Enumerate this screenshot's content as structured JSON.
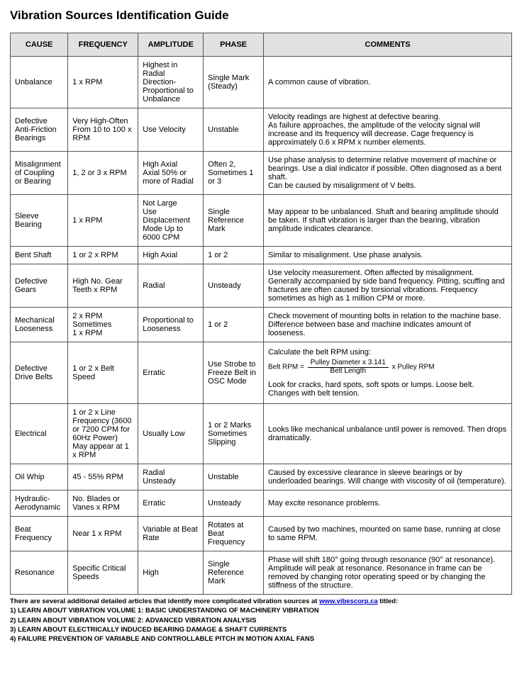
{
  "page_title": "Vibration Sources Identification Guide",
  "headers": {
    "cause": "CAUSE",
    "frequency": "FREQUENCY",
    "amplitude": "AMPLITUDE",
    "phase": "PHASE",
    "comments": "COMMENTS"
  },
  "rows": [
    {
      "cause": "Unbalance",
      "frequency": "1 x RPM",
      "amplitude": "Highest in Radial Direction- Proportional to Unbalance",
      "phase": "Single Mark (Steady)",
      "comments": "A common cause of vibration."
    },
    {
      "cause": "Defective Anti-Friction Bearings",
      "frequency": "Very High-Often From 10 to 100 x RPM",
      "amplitude": "Use Velocity",
      "phase": "Unstable",
      "comments": "Velocity readings are highest at defective bearing.\nAs failure approaches, the amplitude of the velocity signal will increase and its frequency will decrease. Cage frequency is approximately 0.6 x RPM x number elements."
    },
    {
      "cause": "Misalignment of Coupling or Bearing",
      "frequency": "1, 2 or 3 x RPM",
      "amplitude": "High Axial\nAxial 50% or more of Radial",
      "phase": "Often 2, Sometimes 1 or 3",
      "comments": "Use phase analysis to determine relative movement of machine or bearings. Use a dial indicator if possible. Often diagnosed as a bent shaft.\nCan be caused by misalignment of V belts."
    },
    {
      "cause": "Sleeve Bearing",
      "frequency": "1 x RPM",
      "amplitude": "Not Large\nUse Displacement Mode Up to 6000 CPM",
      "phase": "Single Reference Mark",
      "comments": "May appear to be unbalanced. Shaft and bearing amplitude should be taken. If shaft vibration is larger than the bearing, vibration amplitude indicates clearance."
    },
    {
      "cause": "Bent Shaft",
      "frequency": "1 or 2 x RPM",
      "amplitude": "High Axial",
      "phase": "1 or 2",
      "comments": "Similar to misalignment. Use phase analysis."
    },
    {
      "cause": "Defective Gears",
      "frequency": "High No. Gear Teeth x RPM",
      "amplitude": "Radial",
      "phase": "Unsteady",
      "comments": "Use velocity measurement. Often affected by misalignment. Generally accompanied by side band frequency. Pitting, scuffing and fractures are often caused by torsional vibrations. Frequency sometimes as high as 1 million CPM or more."
    },
    {
      "cause": "Mechanical Looseness",
      "frequency": "2 x RPM Sometimes\n1 x RPM",
      "amplitude": "Proportional to Looseness",
      "phase": "1 or 2",
      "comments": "Check movement of mounting bolts in relation to the machine base. Difference between base and machine indicates amount of looseness."
    },
    {
      "cause": "Defective Drive Belts",
      "frequency": "1 or 2 x Belt Speed",
      "amplitude": "Erratic",
      "phase": "Use Strobe to Freeze Belt in OSC Mode",
      "comments_special": "belt_formula",
      "comments_pre": "Calculate the belt RPM using:",
      "comments_formula_lhs": "Belt RPM = ",
      "comments_formula_num": "Pulley Diameter x 3.141",
      "comments_formula_den": "Belt Length",
      "comments_formula_rhs": " x Pulley RPM",
      "comments_post": "Look for cracks, hard spots, soft spots or lumps. Loose belt. Changes with belt tension."
    },
    {
      "cause": "Electrical",
      "frequency": "1 or 2 x Line Frequency (3600 or 7200 CPM for 60Hz Power) May appear at 1 x RPM",
      "amplitude": "Usually Low",
      "phase": "1 or 2 Marks Sometimes Slipping",
      "comments": "Looks like mechanical unbalance until power is removed. Then drops dramatically."
    },
    {
      "cause": "Oil Whip",
      "frequency": "45 - 55% RPM",
      "amplitude": "Radial Unsteady",
      "phase": "Unstable",
      "comments": "Caused by excessive clearance in sleeve bearings or by underloaded bearings. Will change with viscosity of oil (temperature)."
    },
    {
      "cause": "Hydraulic-Aerodynamic",
      "frequency": "No. Blades or Vanes x RPM",
      "amplitude": "Erratic",
      "phase": "Unsteady",
      "comments": "May excite resonance problems."
    },
    {
      "cause": "Beat Frequency",
      "frequency": "Near 1 x RPM",
      "amplitude": "Variable at Beat Rate",
      "phase": "Rotates at Beat Frequency",
      "comments": "Caused by two machines, mounted on same base, running at close to same RPM."
    },
    {
      "cause": "Resonance",
      "frequency": "Specific Critical Speeds",
      "amplitude": "High",
      "phase": "Single Reference Mark",
      "comments": "Phase will shift 180° going through resonance (90° at resonance). Amplitude will peak at resonance. Resonance in frame can be removed by changing rotor operating speed or by changing the stiffness of the structure."
    }
  ],
  "footer": {
    "intro_pre": "There are several additional detailed articles that identify more complicated vibration sources at ",
    "link_text": "www.vibescorp.ca",
    "intro_post": " titled:",
    "items": [
      "1) LEARN ABOUT VIBRATION VOLUME 1: BASIC UNDERSTANDING OF MACHINERY VIBRATION",
      "2) LEARN ABOUT VIBRATION VOLUME 2: ADVANCED VIBRATION ANALYSIS",
      "3) LEARN ABOUT ELECTRICALLY INDUCED BEARING DAMAGE & SHAFT CURRENTS",
      "4) FAILURE PREVENTION OF VARIABLE AND CONTROLLABLE PITCH IN MOTION AXIAL FANS"
    ]
  }
}
